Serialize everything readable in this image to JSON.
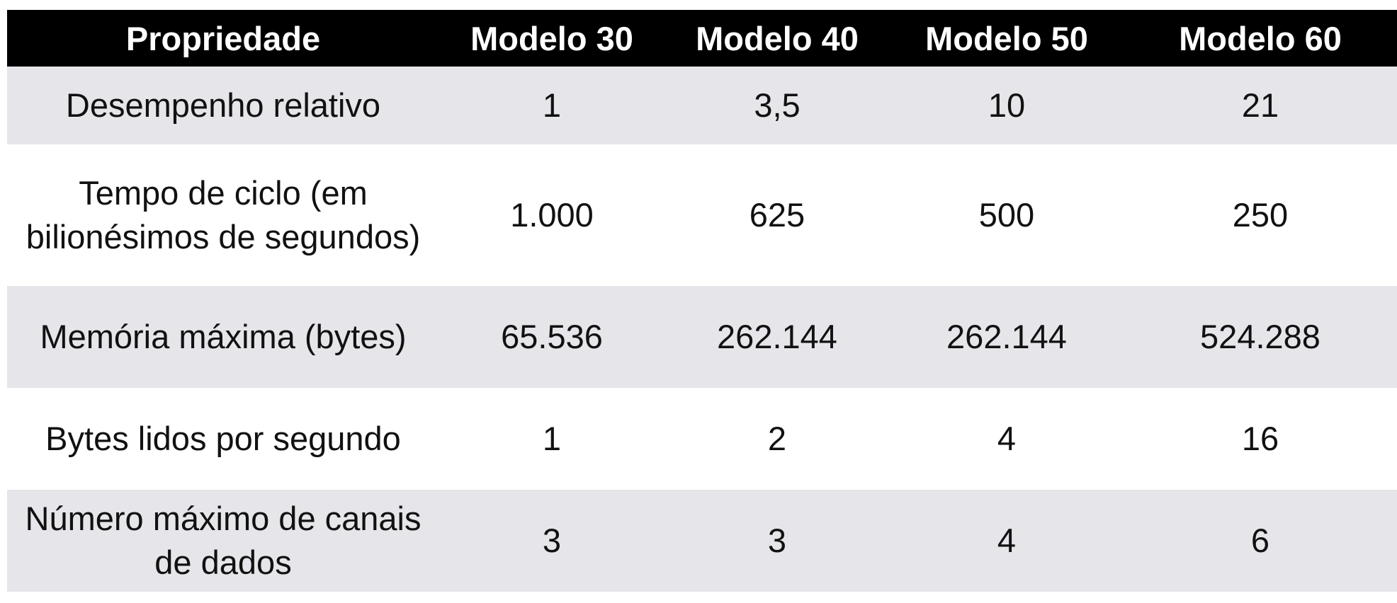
{
  "table": {
    "columns": [
      "Propriedade",
      "Modelo 30",
      "Modelo 40",
      "Modelo 50",
      "Modelo 60"
    ],
    "rows": [
      {
        "property": "Desempenho relativo",
        "values": [
          "1",
          "3,5",
          "10",
          "21"
        ]
      },
      {
        "property": "Tempo de ciclo (em bilionésimos de segundos)",
        "values": [
          "1.000",
          "625",
          "500",
          "250"
        ]
      },
      {
        "property": "Memória máxima (bytes)",
        "values": [
          "65.536",
          "262.144",
          "262.144",
          "524.288"
        ]
      },
      {
        "property": "Bytes lidos por segundo",
        "values": [
          "1",
          "2",
          "4",
          "16"
        ]
      },
      {
        "property": "Número máximo de canais de dados",
        "values": [
          "3",
          "3",
          "4",
          "6"
        ]
      }
    ]
  },
  "colors": {
    "header_background": "#000000",
    "header_text": "#ffffff",
    "shaded_row": "#e5e5ea",
    "plain_row": "#ffffff"
  }
}
